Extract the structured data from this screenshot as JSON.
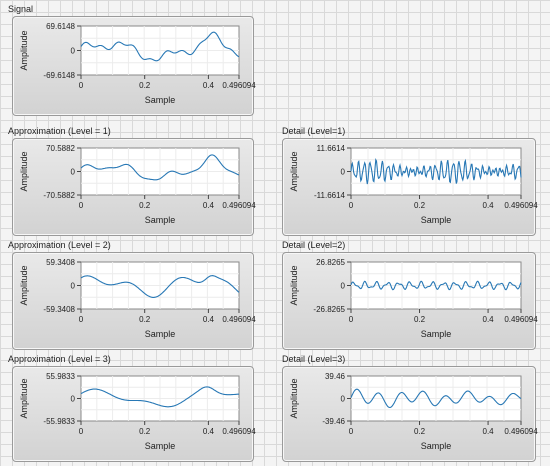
{
  "colors": {
    "trace": "#2878b5",
    "plot_bg": "#ffffff",
    "frame": "#9a9a9a"
  },
  "graphs": [
    {
      "id": "signal",
      "label": "Signal",
      "ylabel": "Amplitude",
      "xlabel": "Sample",
      "ymax_label": "69.6148",
      "yzero_label": "0",
      "ymin_label": "-69.6148",
      "xticks": [
        "0",
        "0.2",
        "0.4",
        "0.496094"
      ]
    },
    {
      "id": "approx-1",
      "label": "Approximation (Level = 1)",
      "ylabel": "Amplitude",
      "xlabel": "Sample",
      "ymax_label": "70.5882",
      "yzero_label": "0",
      "ymin_label": "-70.5882",
      "xticks": [
        "0",
        "0.2",
        "0.4",
        "0.496094"
      ]
    },
    {
      "id": "detail-1",
      "label": "Detail (Level=1)",
      "ylabel": "Amplitude",
      "xlabel": "Sample",
      "ymax_label": "11.6614",
      "yzero_label": "0",
      "ymin_label": "-11.6614",
      "xticks": [
        "0",
        "0.2",
        "0.4",
        "0.496094"
      ]
    },
    {
      "id": "approx-2",
      "label": "Approximation (Level = 2)",
      "ylabel": "Amplitude",
      "xlabel": "Sample",
      "ymax_label": "59.3408",
      "yzero_label": "0",
      "ymin_label": "-59.3408",
      "xticks": [
        "0",
        "0.2",
        "0.4",
        "0.496094"
      ]
    },
    {
      "id": "detail-2",
      "label": "Detail (Level=2)",
      "ylabel": "Amplitude",
      "xlabel": "Sample",
      "ymax_label": "26.8265",
      "yzero_label": "0",
      "ymin_label": "-26.8265",
      "xticks": [
        "0",
        "0.2",
        "0.4",
        "0.496094"
      ]
    },
    {
      "id": "approx-3",
      "label": "Approximation (Level = 3)",
      "ylabel": "Amplitude",
      "xlabel": "Sample",
      "ymax_label": "55.9833",
      "yzero_label": "0",
      "ymin_label": "-55.9833",
      "xticks": [
        "0",
        "0.2",
        "0.4",
        "0.496094"
      ]
    },
    {
      "id": "detail-3",
      "label": "Detail (Level=3)",
      "ylabel": "Amplitude",
      "xlabel": "Sample",
      "ymax_label": "39.46",
      "yzero_label": "0",
      "ymin_label": "-39.46",
      "xticks": [
        "0",
        "0.2",
        "0.4",
        "0.496094"
      ]
    }
  ]
}
